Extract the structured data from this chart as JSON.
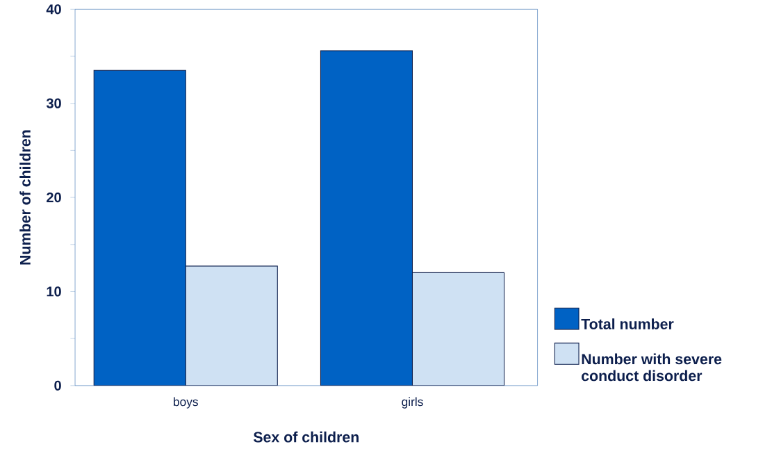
{
  "chart_data": {
    "type": "bar",
    "xlabel": "Sex of children",
    "ylabel": "Number of children",
    "categories": [
      "boys",
      "girls"
    ],
    "series": [
      {
        "name": "Total number",
        "color": "#0062c4",
        "values": [
          33.5,
          35.6
        ]
      },
      {
        "name": "Number with severe conduct disorder",
        "color": "#cfe1f3",
        "values": [
          12.7,
          12
        ]
      }
    ],
    "ylim": [
      0,
      40
    ],
    "yticks": [
      0,
      {
        "value": 5,
        "label": null
      },
      10,
      {
        "value": 15,
        "label": null
      },
      20,
      {
        "value": 25,
        "label": null
      },
      30,
      {
        "value": 35,
        "label": null
      },
      40
    ],
    "grid": false,
    "legend": "right"
  }
}
